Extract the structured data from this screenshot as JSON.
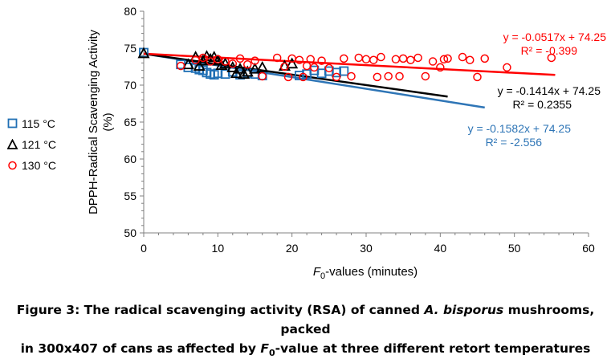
{
  "chart_data": {
    "type": "scatter",
    "xlabel_prefix": "F",
    "xlabel_sub": "0",
    "xlabel_suffix": "-values (minutes)",
    "ylabel_line1": "DPPH-Radical Scavenging Activity",
    "ylabel_line2": "(%)",
    "xlim": [
      0,
      60
    ],
    "ylim": [
      50,
      80
    ],
    "xticks": [
      0,
      10,
      20,
      30,
      40,
      50,
      60
    ],
    "yticks": [
      50,
      55,
      60,
      65,
      70,
      75,
      80
    ],
    "grid": false,
    "legend_position": "left",
    "series": [
      {
        "name": "115 °C",
        "marker": "square",
        "color": "#1f6fb4",
        "x": [
          0,
          5,
          6,
          7,
          7.5,
          8,
          8.5,
          9,
          9.5,
          10,
          11,
          12,
          13,
          14,
          15,
          16,
          21,
          22,
          23,
          24,
          25,
          26,
          27
        ],
        "y": [
          74.4,
          72.8,
          72.4,
          72.3,
          72.1,
          72.0,
          71.7,
          71.5,
          71.4,
          71.6,
          71.5,
          71.8,
          71.4,
          71.6,
          71.5,
          71.3,
          71.3,
          71.5,
          72.0,
          71.6,
          71.9,
          71.7,
          71.9
        ],
        "trend": {
          "slope": -0.1582,
          "intercept": 74.25,
          "x_end": 46,
          "color": "#2e75b6",
          "equation": "y = -0.1582x + 74.25",
          "r2": "R² = -2.556"
        }
      },
      {
        "name": "121 °C",
        "marker": "triangle",
        "color": "#000000",
        "x": [
          0,
          6,
          7,
          7.5,
          8,
          8.5,
          9,
          9.5,
          10,
          10.5,
          11,
          12,
          12.5,
          13,
          13.5,
          14,
          15,
          16,
          19,
          20
        ],
        "y": [
          74.3,
          72.8,
          73.8,
          72.6,
          73.3,
          73.9,
          73.5,
          73.8,
          73.3,
          72.7,
          72.9,
          72.4,
          71.6,
          72.2,
          71.5,
          71.8,
          72.2,
          72.4,
          72.6,
          72.9
        ],
        "trend": {
          "slope": -0.1414,
          "intercept": 74.25,
          "x_end": 41,
          "color": "#000000",
          "equation": "y = -0.1414x + 74.25",
          "r2": "R² = 0.2355"
        }
      },
      {
        "name": "130 °C",
        "marker": "circle",
        "color": "#ff0000",
        "x": [
          5,
          7,
          8,
          9,
          10,
          11,
          12,
          13,
          14,
          15,
          16,
          18,
          19,
          19.5,
          20,
          21,
          21.5,
          22,
          22.5,
          23,
          24,
          25,
          26,
          27,
          28,
          29,
          30,
          31,
          31.5,
          32,
          33,
          34,
          34.5,
          35,
          36,
          37,
          38,
          39,
          40,
          40.5,
          41,
          43,
          44,
          45,
          46,
          49,
          55
        ],
        "y": [
          72.6,
          73.4,
          73.7,
          73.2,
          73.5,
          73.2,
          72.9,
          73.6,
          72.8,
          73.3,
          71.2,
          73.7,
          72.5,
          71.1,
          73.6,
          73.4,
          71.1,
          72.6,
          73.5,
          72.4,
          73.3,
          72.3,
          71.1,
          73.6,
          71.2,
          73.7,
          73.5,
          73.4,
          71.1,
          73.8,
          71.2,
          73.5,
          71.2,
          73.6,
          73.4,
          73.7,
          71.2,
          73.2,
          72.4,
          73.5,
          73.6,
          73.8,
          73.4,
          71.1,
          73.6,
          72.4,
          73.7
        ],
        "trend": {
          "slope": -0.0517,
          "intercept": 74.25,
          "x_end": 55.5,
          "color": "#ff0000",
          "equation": "y = -0.0517x + 74.25",
          "r2": "R² = -0.399"
        }
      }
    ]
  },
  "caption": {
    "line1_a": "Figure 3:  The radical scavenging activity (RSA) of canned ",
    "line1_italic": "A. bisporus",
    "line1_b": " mushrooms, packed",
    "line2_a": "in 300x407 of cans as affected by ",
    "line2_italic": "F",
    "line2_sub": "0",
    "line2_b": "-value at three different retort temperatures"
  }
}
